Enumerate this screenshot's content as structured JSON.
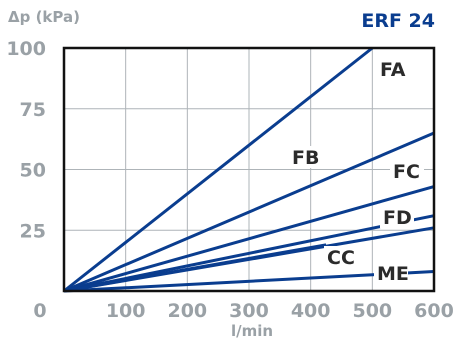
{
  "chart_data": {
    "type": "line",
    "title": "ERF 24",
    "ylabel": "Δp (kPa)",
    "xlabel": "l/min",
    "xlim": [
      0,
      600
    ],
    "ylim": [
      0,
      100
    ],
    "x_ticks": [
      "0",
      "100",
      "200",
      "300",
      "400",
      "500",
      "600"
    ],
    "y_ticks": [
      "100",
      "75",
      "50",
      "25"
    ],
    "grid": true,
    "line_color": "#0a3d8f",
    "series": [
      {
        "name": "FA",
        "x": [
          0,
          500
        ],
        "y": [
          0,
          100
        ]
      },
      {
        "name": "FB",
        "x": [
          0,
          600
        ],
        "y": [
          0,
          65
        ]
      },
      {
        "name": "FC",
        "x": [
          0,
          600
        ],
        "y": [
          0,
          43
        ]
      },
      {
        "name": "FD",
        "x": [
          0,
          600
        ],
        "y": [
          0,
          31
        ]
      },
      {
        "name": "CC",
        "x": [
          0,
          425
        ],
        "y": [
          0,
          19
        ]
      },
      {
        "name": "",
        "x": [
          0,
          600
        ],
        "y": [
          0,
          26
        ]
      },
      {
        "name": "ME",
        "x": [
          0,
          600
        ],
        "y": [
          0,
          8
        ]
      }
    ]
  }
}
